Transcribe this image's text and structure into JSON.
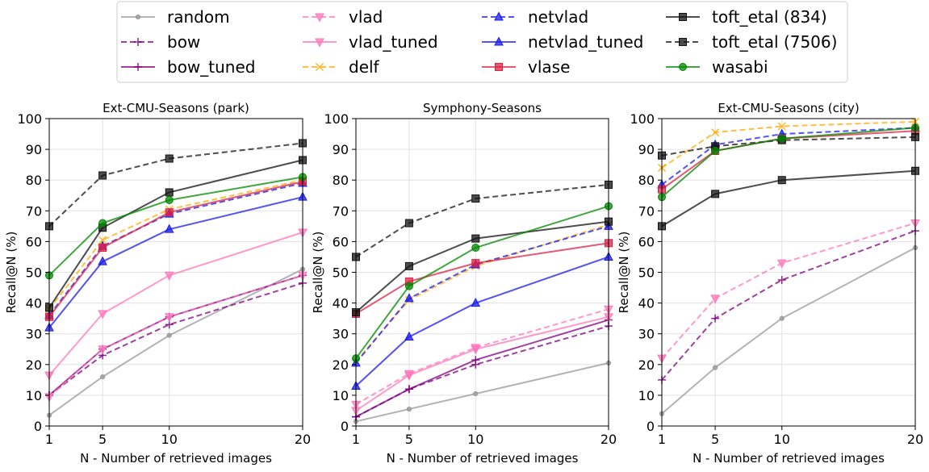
{
  "chart_data": {
    "type": "line",
    "x": [
      1,
      5,
      10,
      20
    ],
    "x_ticks": [
      "1",
      "5",
      "10",
      "20"
    ],
    "y_ticks": [
      "0",
      "10",
      "20",
      "30",
      "40",
      "50",
      "60",
      "70",
      "80",
      "90",
      "100"
    ],
    "xlabel": "N - Number of retrieved images",
    "ylabel": "Recall@N (%)",
    "ylim": [
      0,
      100
    ],
    "grid": true,
    "legend_position": "top-center",
    "legend": [
      {
        "name": "random",
        "color": "#999999",
        "dash": false,
        "marker": "dot"
      },
      {
        "name": "bow",
        "color": "#800080",
        "dash": true,
        "marker": "plus"
      },
      {
        "name": "bow_tuned",
        "color": "#800080",
        "dash": false,
        "marker": "plus"
      },
      {
        "name": "vlad",
        "color": "#ff77bb",
        "dash": true,
        "marker": "tri-down"
      },
      {
        "name": "vlad_tuned",
        "color": "#ff77bb",
        "dash": false,
        "marker": "tri-down"
      },
      {
        "name": "delf",
        "color": "#ffaa00",
        "dash": true,
        "marker": "x"
      },
      {
        "name": "netvlad",
        "color": "#1a1aee",
        "dash": true,
        "marker": "tri-up"
      },
      {
        "name": "netvlad_tuned",
        "color": "#1a1aee",
        "dash": false,
        "marker": "tri-up"
      },
      {
        "name": "vlase",
        "color": "#dd2244",
        "dash": false,
        "marker": "square"
      },
      {
        "name": "toft_etal (834)",
        "color": "#111111",
        "dash": false,
        "marker": "square"
      },
      {
        "name": "toft_etal (7506)",
        "color": "#111111",
        "dash": true,
        "marker": "square"
      },
      {
        "name": "wasabi",
        "color": "#008800",
        "dash": false,
        "marker": "circle"
      }
    ],
    "charts": [
      {
        "title": "Ext-CMU-Seasons (park)",
        "series": [
          {
            "name": "random",
            "values": [
              3.5,
              16,
              29.5,
              51
            ]
          },
          {
            "name": "bow",
            "values": [
              10,
              23,
              33,
              46.5
            ]
          },
          {
            "name": "bow_tuned",
            "values": [
              10,
              25,
              35.5,
              49
            ]
          },
          {
            "name": "vlad_tuned",
            "values": [
              16.5,
              36.5,
              49,
              63
            ]
          },
          {
            "name": "vlad",
            "values": [
              9.5,
              25,
              35.5,
              49
            ]
          },
          {
            "name": "delf",
            "values": [
              38,
              60.5,
              70.5,
              80
            ]
          },
          {
            "name": "netvlad",
            "values": [
              36,
              58.5,
              69,
              79
            ]
          },
          {
            "name": "netvlad_tuned",
            "values": [
              32,
              53.5,
              64,
              74.5
            ]
          },
          {
            "name": "vlase",
            "values": [
              35.5,
              58,
              69.5,
              79.5
            ]
          },
          {
            "name": "toft_etal (834)",
            "values": [
              38.5,
              64.5,
              76,
              86.5
            ]
          },
          {
            "name": "toft_etal (7506)",
            "values": [
              65,
              81.5,
              87,
              92
            ]
          },
          {
            "name": "wasabi",
            "values": [
              49,
              66,
              73.5,
              81
            ]
          }
        ]
      },
      {
        "title": "Symphony-Seasons",
        "series": [
          {
            "name": "random",
            "values": [
              1.5,
              5.5,
              10.5,
              20.5
            ]
          },
          {
            "name": "bow",
            "values": [
              3,
              12,
              20,
              32.5
            ]
          },
          {
            "name": "bow_tuned",
            "values": [
              3,
              12,
              21.5,
              34.5
            ]
          },
          {
            "name": "vlad",
            "values": [
              7,
              17,
              25.5,
              38
            ]
          },
          {
            "name": "vlad_tuned",
            "values": [
              5,
              16.5,
              25,
              35.5
            ]
          },
          {
            "name": "delf",
            "values": [
              21,
              41,
              52,
              65.5
            ]
          },
          {
            "name": "netvlad",
            "values": [
              20.5,
              41.5,
              52.5,
              65
            ]
          },
          {
            "name": "netvlad_tuned",
            "values": [
              13,
              29,
              40,
              55
            ]
          },
          {
            "name": "vlase",
            "values": [
              36.5,
              47,
              53,
              59.5
            ]
          },
          {
            "name": "toft_etal (834)",
            "values": [
              37,
              52,
              61,
              66.5
            ]
          },
          {
            "name": "toft_etal (7506)",
            "values": [
              55,
              66,
              74,
              78.5
            ]
          },
          {
            "name": "wasabi",
            "values": [
              22,
              45.5,
              58,
              71.5
            ]
          }
        ]
      },
      {
        "title": "Ext-CMU-Seasons (city)",
        "series": [
          {
            "name": "random",
            "values": [
              4,
              19,
              35,
              58
            ]
          },
          {
            "name": "bow",
            "values": [
              15,
              35,
              47.5,
              63.5
            ]
          },
          {
            "name": "vlad",
            "values": [
              22,
              41.5,
              53,
              66
            ]
          },
          {
            "name": "delf",
            "values": [
              84,
              95.5,
              97.5,
              99
            ]
          },
          {
            "name": "netvlad",
            "values": [
              78.5,
              91.5,
              95,
              97
            ]
          },
          {
            "name": "vlase",
            "values": [
              77,
              89.5,
              93.5,
              96
            ]
          },
          {
            "name": "toft_etal (834)",
            "values": [
              65,
              75.5,
              80,
              83
            ]
          },
          {
            "name": "toft_etal (7506)",
            "values": [
              88,
              91,
              93,
              94
            ]
          },
          {
            "name": "wasabi",
            "values": [
              74.5,
              89.5,
              93.5,
              97
            ]
          }
        ]
      }
    ]
  }
}
